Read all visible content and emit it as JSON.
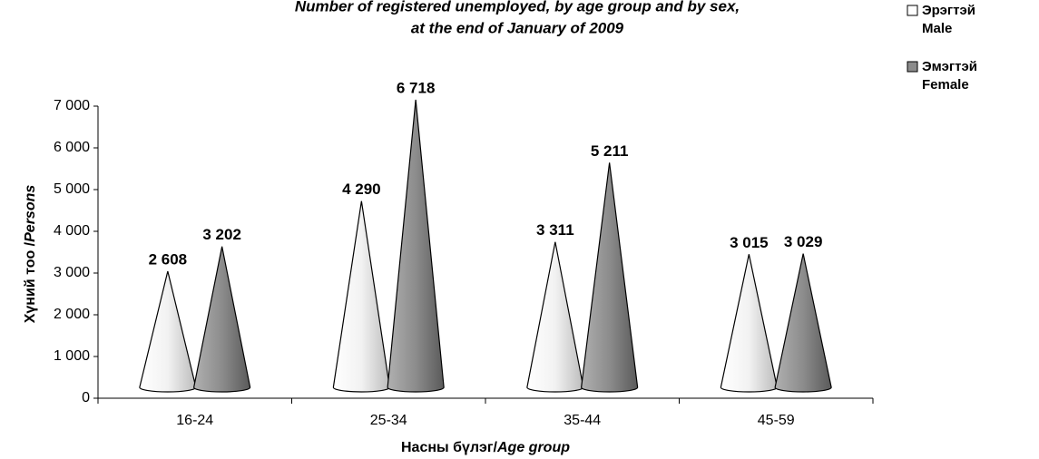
{
  "chart_data": {
    "type": "cone",
    "title": [
      "Number of registered unemployed, by age group and by sex,",
      "at the end of January of 2009"
    ],
    "y_label": [
      "Хүний тоо /",
      "Persons"
    ],
    "x_label": [
      "Насны бүлэг/",
      "Age group"
    ],
    "categories": [
      "16-24",
      "25-34",
      "35-44",
      "45-59"
    ],
    "series": [
      {
        "name": "Эрэгтэй",
        "name_en": "Male",
        "color": "#e8e8e8",
        "values": [
          2608,
          4290,
          3311,
          3015
        ],
        "value_labels": [
          "2 608",
          "4 290",
          "3 311",
          "3 015"
        ]
      },
      {
        "name": "Эмэгтэй",
        "name_en": "Female",
        "color": "#8c8c8c",
        "values": [
          3202,
          6718,
          5211,
          3029
        ],
        "value_labels": [
          "3 202",
          "6 718",
          "5 211",
          "3 029"
        ]
      }
    ],
    "ylim": [
      0,
      7000
    ],
    "yticks": [
      0,
      {
        "value": 1000,
        "label": "1 000"
      },
      {
        "value": 2000,
        "label": "2 000"
      },
      {
        "value": 3000,
        "label": "3 000"
      },
      {
        "value": 4000,
        "label": "4 000"
      },
      {
        "value": 5000,
        "label": "5 000"
      },
      {
        "value": 6000,
        "label": "6 000"
      },
      {
        "value": 7000,
        "label": "7 000"
      }
    ],
    "legend": "right"
  }
}
